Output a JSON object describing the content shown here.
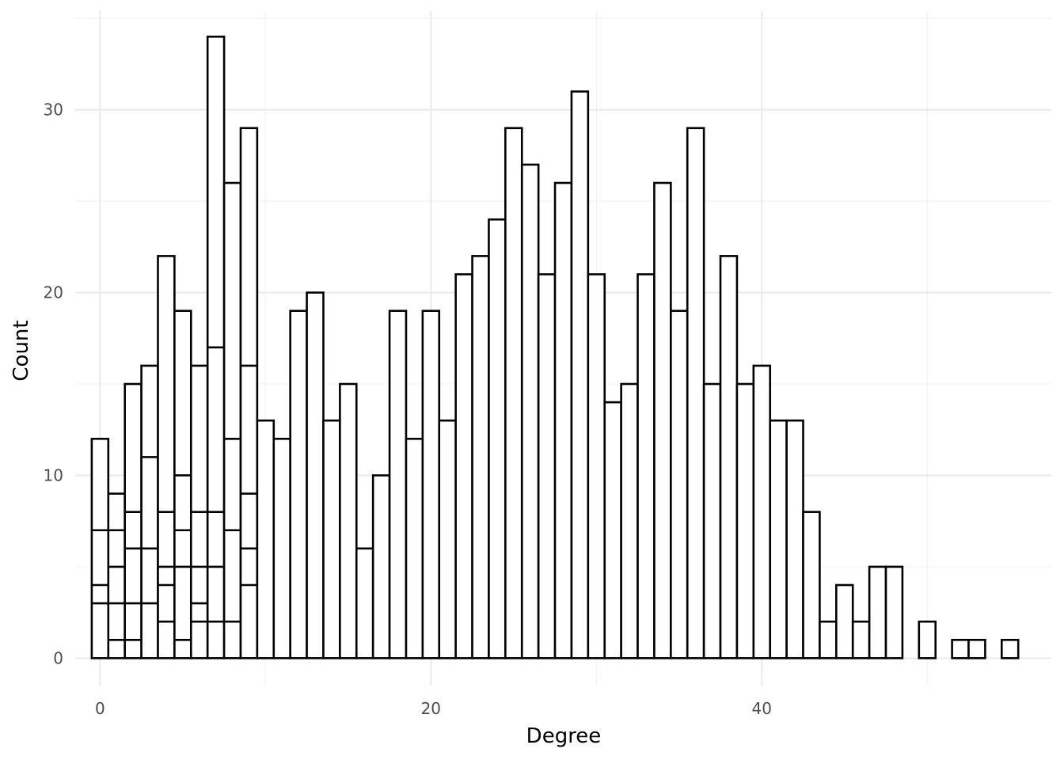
{
  "chart_data": {
    "type": "bar",
    "subtype": "histogram",
    "xlabel": "Degree",
    "ylabel": "Count",
    "xlim": [
      -1.5,
      57.5
    ],
    "ylim": [
      -1.5,
      35.4
    ],
    "x_ticks": [
      0,
      20,
      40
    ],
    "y_ticks": [
      0,
      10,
      20,
      30
    ],
    "grid": true,
    "legend": "none",
    "bin_width": 1,
    "bins": [
      {
        "x": 0,
        "count": 12,
        "segments": [
          3,
          4,
          7
        ]
      },
      {
        "x": 1,
        "count": 9,
        "segments": [
          1,
          3,
          5,
          7
        ]
      },
      {
        "x": 2,
        "count": 15,
        "segments": [
          1,
          3,
          6,
          8
        ]
      },
      {
        "x": 3,
        "count": 16,
        "segments": [
          3,
          6,
          11
        ]
      },
      {
        "x": 4,
        "count": 22,
        "segments": [
          2,
          4,
          5,
          8
        ]
      },
      {
        "x": 5,
        "count": 19,
        "segments": [
          1,
          5,
          7,
          10
        ]
      },
      {
        "x": 6,
        "count": 16,
        "segments": [
          2,
          3,
          5,
          8
        ]
      },
      {
        "x": 7,
        "count": 34,
        "segments": [
          2,
          5,
          8,
          17
        ]
      },
      {
        "x": 8,
        "count": 26,
        "segments": [
          2,
          7,
          12
        ]
      },
      {
        "x": 9,
        "count": 29,
        "segments": [
          4,
          6,
          9,
          16
        ]
      },
      {
        "x": 10,
        "count": 13,
        "segments": []
      },
      {
        "x": 11,
        "count": 12,
        "segments": []
      },
      {
        "x": 12,
        "count": 19,
        "segments": []
      },
      {
        "x": 13,
        "count": 20,
        "segments": []
      },
      {
        "x": 14,
        "count": 13,
        "segments": []
      },
      {
        "x": 15,
        "count": 15,
        "segments": []
      },
      {
        "x": 16,
        "count": 6,
        "segments": []
      },
      {
        "x": 17,
        "count": 10,
        "segments": []
      },
      {
        "x": 18,
        "count": 19,
        "segments": []
      },
      {
        "x": 19,
        "count": 12,
        "segments": []
      },
      {
        "x": 20,
        "count": 19,
        "segments": []
      },
      {
        "x": 21,
        "count": 13,
        "segments": []
      },
      {
        "x": 22,
        "count": 21,
        "segments": []
      },
      {
        "x": 23,
        "count": 22,
        "segments": []
      },
      {
        "x": 24,
        "count": 24,
        "segments": []
      },
      {
        "x": 25,
        "count": 29,
        "segments": []
      },
      {
        "x": 26,
        "count": 27,
        "segments": []
      },
      {
        "x": 27,
        "count": 21,
        "segments": []
      },
      {
        "x": 28,
        "count": 26,
        "segments": []
      },
      {
        "x": 29,
        "count": 31,
        "segments": []
      },
      {
        "x": 30,
        "count": 21,
        "segments": []
      },
      {
        "x": 31,
        "count": 14,
        "segments": []
      },
      {
        "x": 32,
        "count": 15,
        "segments": []
      },
      {
        "x": 33,
        "count": 21,
        "segments": []
      },
      {
        "x": 34,
        "count": 26,
        "segments": []
      },
      {
        "x": 35,
        "count": 19,
        "segments": []
      },
      {
        "x": 36,
        "count": 29,
        "segments": []
      },
      {
        "x": 37,
        "count": 15,
        "segments": []
      },
      {
        "x": 38,
        "count": 22,
        "segments": []
      },
      {
        "x": 39,
        "count": 15,
        "segments": []
      },
      {
        "x": 40,
        "count": 16,
        "segments": []
      },
      {
        "x": 41,
        "count": 13,
        "segments": []
      },
      {
        "x": 42,
        "count": 13,
        "segments": []
      },
      {
        "x": 43,
        "count": 8,
        "segments": []
      },
      {
        "x": 44,
        "count": 2,
        "segments": []
      },
      {
        "x": 45,
        "count": 4,
        "segments": []
      },
      {
        "x": 46,
        "count": 2,
        "segments": []
      },
      {
        "x": 47,
        "count": 5,
        "segments": []
      },
      {
        "x": 48,
        "count": 5,
        "segments": []
      },
      {
        "x": 50,
        "count": 2,
        "segments": []
      },
      {
        "x": 52,
        "count": 1,
        "segments": []
      },
      {
        "x": 53,
        "count": 1,
        "segments": []
      },
      {
        "x": 55,
        "count": 1,
        "segments": []
      }
    ]
  }
}
